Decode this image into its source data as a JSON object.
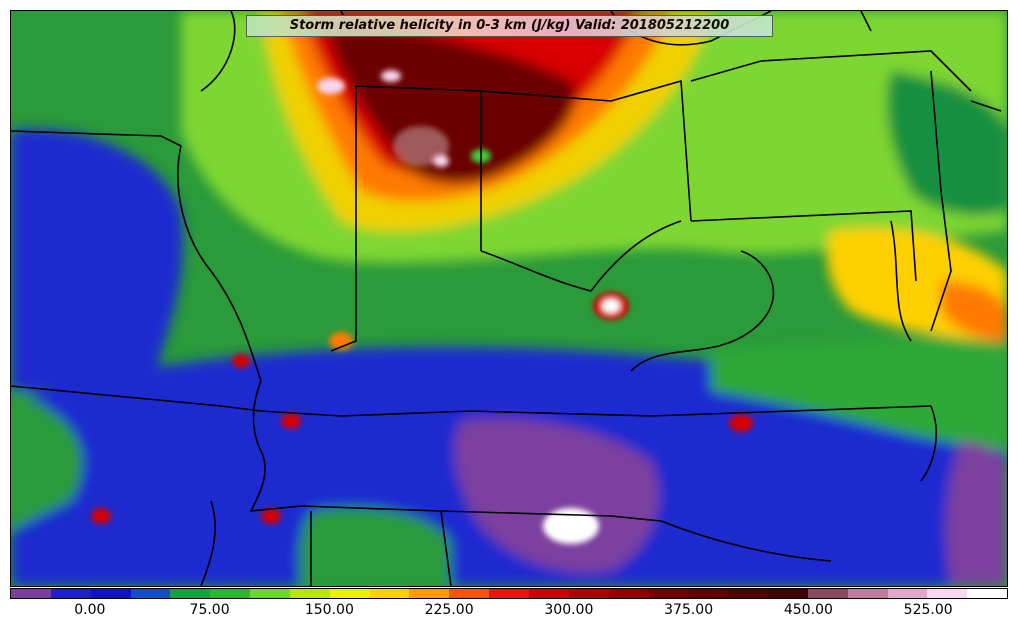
{
  "title": "Storm relative helicity in 0-3 km (J/kg) Valid: 201805212200",
  "colorbar": {
    "tick_labels": [
      "0.00",
      "75.00",
      "150.00",
      "225.00",
      "300.00",
      "375.00",
      "450.00",
      "525.00"
    ],
    "tick_values": [
      0,
      75,
      150,
      225,
      300,
      375,
      450,
      525
    ],
    "range": [
      -50,
      575
    ],
    "bin_width": 25,
    "colors": [
      "#7b3f9e",
      "#2020c8",
      "#1010d0",
      "#1050c0",
      "#18a040",
      "#2eb52e",
      "#6ad630",
      "#b8e800",
      "#f0f000",
      "#ffd000",
      "#ff9a00",
      "#ff5010",
      "#f01010",
      "#d00000",
      "#b00000",
      "#8a0000",
      "#700000",
      "#600000",
      "#500000",
      "#400000",
      "#8a4a60",
      "#c07c9a",
      "#e0a8c8",
      "#f8d8f0",
      "#ffffff"
    ]
  },
  "colors": {
    "boundary": "#000000",
    "background_green": "#2a9a3a"
  }
}
